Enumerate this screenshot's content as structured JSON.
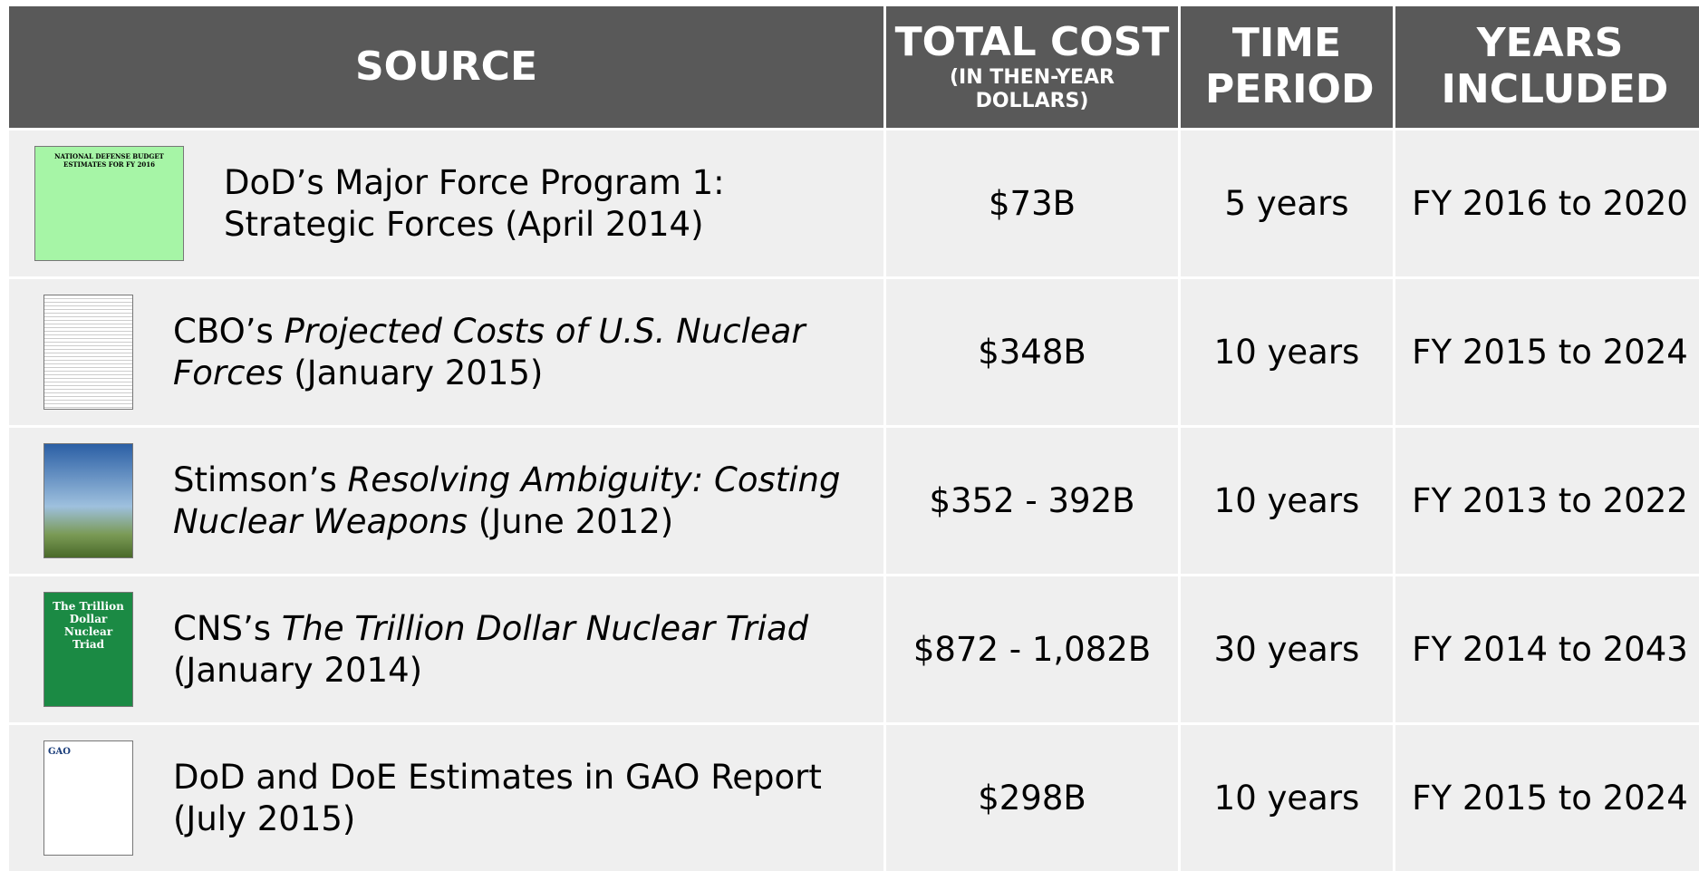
{
  "table": {
    "header": {
      "source": "SOURCE",
      "cost": "TOTAL COST",
      "cost_note": "(IN THEN-YEAR DOLLARS)",
      "period": "TIME PERIOD",
      "years": "YEARS INCLUDED"
    },
    "rows": [
      {
        "cover": "NATIONAL DEFENSE BUDGET ESTIMATES FOR FY 2016",
        "source": [
          {
            "text": "DoD’s Major Force Program 1: Strategic Forces (April 2014)",
            "italic": false
          }
        ],
        "cost": "$73B",
        "period": "5 years",
        "years": "FY 2016 to 2020"
      },
      {
        "source": [
          {
            "text": "CBO’s ",
            "italic": false
          },
          {
            "text": "Projected Costs of U.S. Nuclear Forces",
            "italic": true
          },
          {
            "text": " (January 2015)",
            "italic": false
          }
        ],
        "cost": "$348B",
        "period": "10 years",
        "years": "FY 2015 to 2024"
      },
      {
        "source": [
          {
            "text": "Stimson’s ",
            "italic": false
          },
          {
            "text": "Resolving Ambiguity: Costing Nuclear Weapons",
            "italic": true
          },
          {
            "text": " (June 2012)",
            "italic": false
          }
        ],
        "cost": "$352 - 392B",
        "period": "10 years",
        "years": "FY 2013 to 2022"
      },
      {
        "cover": "The Trillion Dollar Nuclear Triad",
        "source": [
          {
            "text": "CNS’s ",
            "italic": false
          },
          {
            "text": "The Trillion Dollar Nuclear Triad",
            "italic": true
          },
          {
            "text": " (January 2014)",
            "italic": false
          }
        ],
        "cost": "$872 - 1,082B",
        "period": "30 years",
        "years": "FY 2014 to 2043"
      },
      {
        "cover": "GAO",
        "source": [
          {
            "text": "DoD and DoE Estimates in GAO Report (July 2015)",
            "italic": false
          }
        ],
        "cost": "$298B",
        "period": "10 years",
        "years": "FY 2015 to 2024"
      }
    ]
  }
}
